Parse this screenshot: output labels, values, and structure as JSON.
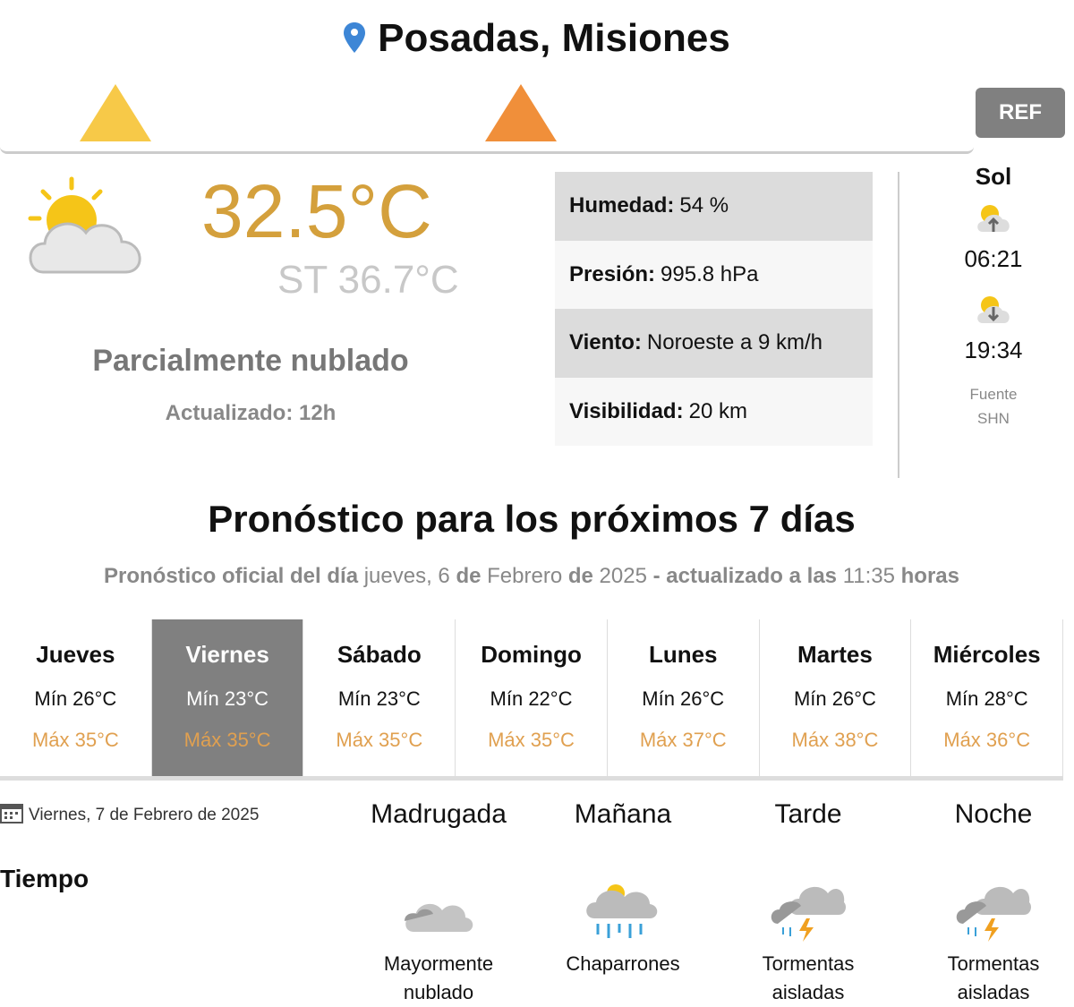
{
  "location": "Posadas, Misiones",
  "alerts": [
    {
      "icon": "storm-alert-icon",
      "color": "#f7c948"
    },
    {
      "icon": "heat-alert-icon",
      "color": "#f08f3a"
    }
  ],
  "ref_label": "REF",
  "current": {
    "temperature": "32.5°C",
    "feels_like": "ST 36.7°C",
    "condition": "Parcialmente nublado",
    "updated": "Actualizado: 12h",
    "icon": "partly-cloudy-icon"
  },
  "details": [
    {
      "label": "Humedad:",
      "value": "54 %"
    },
    {
      "label": "Presión:",
      "value": "995.8 hPa"
    },
    {
      "label": "Viento:",
      "value": "Noroeste a 9 km/h"
    },
    {
      "label": "Visibilidad:",
      "value": "20 km"
    }
  ],
  "sun": {
    "label": "Sol",
    "sunrise": "06:21",
    "sunset": "19:34",
    "source_label": "Fuente",
    "source": "SHN"
  },
  "forecast": {
    "title": "Pronóstico para los próximos 7 días",
    "sub_a": "Pronóstico oficial del día",
    "sub_day": "jueves, 6",
    "sub_de1": "de",
    "sub_month": "Febrero",
    "sub_de2": "de",
    "sub_year": "2025",
    "sub_b": "- actualizado a las",
    "sub_time": "11:35",
    "sub_c": "horas",
    "days": [
      {
        "name": "Jueves",
        "min": "Mín 26°C",
        "max": "Máx 35°C"
      },
      {
        "name": "Viernes",
        "min": "Mín 23°C",
        "max": "Máx 35°C",
        "selected": true
      },
      {
        "name": "Sábado",
        "min": "Mín 23°C",
        "max": "Máx 35°C"
      },
      {
        "name": "Domingo",
        "min": "Mín 22°C",
        "max": "Máx 35°C"
      },
      {
        "name": "Lunes",
        "min": "Mín 26°C",
        "max": "Máx 37°C"
      },
      {
        "name": "Martes",
        "min": "Mín 26°C",
        "max": "Máx 38°C"
      },
      {
        "name": "Miércoles",
        "min": "Mín 28°C",
        "max": "Máx 36°C"
      }
    ]
  },
  "detail": {
    "date": "Viernes, 7 de Febrero de 2025",
    "row_label": "Tiempo",
    "periods": [
      {
        "name": "Madrugada",
        "desc1": "Mayormente",
        "desc2": "nublado",
        "icon": "cloudy-icon"
      },
      {
        "name": "Mañana",
        "desc1": "Chaparrones",
        "desc2": "",
        "icon": "showers-icon"
      },
      {
        "name": "Tarde",
        "desc1": "Tormentas",
        "desc2": "aisladas",
        "icon": "thunderstorm-icon"
      },
      {
        "name": "Noche",
        "desc1": "Tormentas",
        "desc2": "aisladas",
        "icon": "thunderstorm-icon"
      }
    ]
  }
}
